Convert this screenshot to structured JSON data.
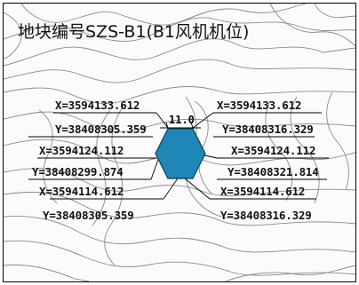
{
  "title": "地块编号SZS-B1(B1风机机位)",
  "dimension_label": "11.0",
  "hexagon_color": "#1f87b8",
  "coordinates": {
    "left": [
      {
        "x": "X=3594133.612",
        "y": "Y=38408305.359"
      },
      {
        "x": "X=3594124.112",
        "y": "Y=38408299.874"
      },
      {
        "x": "X=3594114.612",
        "y": "Y=38408305.359"
      }
    ],
    "right": [
      {
        "x": "X=3594133.612",
        "y": "Y=38408316.329"
      },
      {
        "x": "X=3594124.112",
        "y": "Y=38408321.814"
      },
      {
        "x": "X=3594114.612",
        "y": "Y=38408316.329"
      }
    ]
  }
}
